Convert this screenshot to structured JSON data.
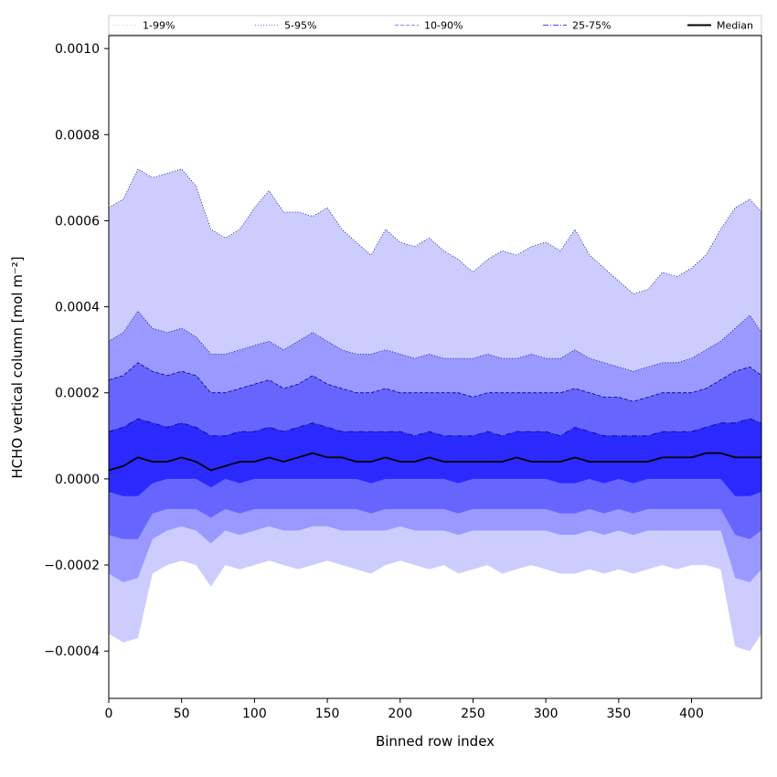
{
  "chart_data": {
    "type": "area",
    "xlabel": "Binned row index",
    "ylabel": "HCHO vertical column [mol m⁻²]",
    "xlim": [
      0,
      448
    ],
    "ylim": [
      -0.00051,
      0.00103
    ],
    "xticks": [
      0,
      50,
      100,
      150,
      200,
      250,
      300,
      350,
      400
    ],
    "xtick_labels": [
      "0",
      "50",
      "100",
      "150",
      "200",
      "250",
      "300",
      "350",
      "400"
    ],
    "yticks": [
      -0.0004,
      -0.0002,
      0.0,
      0.0002,
      0.0004,
      0.0006,
      0.0008,
      0.001
    ],
    "ytick_labels": [
      "−0.0004",
      "−0.0002",
      "0.0000",
      "0.0002",
      "0.0004",
      "0.0006",
      "0.0008",
      "0.0010"
    ],
    "legend_position": "top",
    "grid": false,
    "colors": {
      "band_1_99": "#ccccff",
      "band_5_95": "#9999ff",
      "band_10_90": "#6666ff",
      "band_25_75": "#2a2aff",
      "edge": "#00008b",
      "median": "#000000"
    },
    "legend": [
      {
        "label": "1-99%",
        "style": "dotted",
        "color": "#ccccff"
      },
      {
        "label": "5-95%",
        "style": "dotted",
        "color": "#7777dd"
      },
      {
        "label": "10-90%",
        "style": "dashed",
        "color": "#8888ff"
      },
      {
        "label": "25-75%",
        "style": "dashdot",
        "color": "#4444ff"
      },
      {
        "label": "Median",
        "style": "solid",
        "color": "#000000"
      }
    ],
    "x": [
      0,
      10,
      20,
      30,
      40,
      50,
      60,
      70,
      80,
      90,
      100,
      110,
      120,
      130,
      140,
      150,
      160,
      170,
      180,
      190,
      200,
      210,
      220,
      230,
      240,
      250,
      260,
      270,
      280,
      290,
      300,
      310,
      320,
      330,
      340,
      350,
      360,
      370,
      380,
      390,
      400,
      410,
      420,
      430,
      440,
      448
    ],
    "series": [
      {
        "name": "1-99%",
        "lower": [
          -0.00036,
          -0.00038,
          -0.00037,
          -0.00022,
          -0.0002,
          -0.00019,
          -0.0002,
          -0.00025,
          -0.0002,
          -0.00021,
          -0.0002,
          -0.00019,
          -0.0002,
          -0.00021,
          -0.0002,
          -0.00019,
          -0.0002,
          -0.00021,
          -0.00022,
          -0.0002,
          -0.00019,
          -0.0002,
          -0.00021,
          -0.0002,
          -0.00022,
          -0.00021,
          -0.0002,
          -0.00022,
          -0.00021,
          -0.0002,
          -0.00021,
          -0.00022,
          -0.00022,
          -0.00021,
          -0.00022,
          -0.00021,
          -0.00022,
          -0.00021,
          -0.0002,
          -0.00021,
          -0.0002,
          -0.0002,
          -0.00021,
          -0.00039,
          -0.0004,
          -0.00036
        ],
        "upper": [
          0.00063,
          0.00065,
          0.00072,
          0.0007,
          0.00071,
          0.00072,
          0.00068,
          0.00058,
          0.00056,
          0.00058,
          0.00063,
          0.00067,
          0.00062,
          0.00062,
          0.00061,
          0.00063,
          0.00058,
          0.00055,
          0.00052,
          0.00058,
          0.00055,
          0.00054,
          0.00056,
          0.00053,
          0.00051,
          0.00048,
          0.00051,
          0.00053,
          0.00052,
          0.00054,
          0.00055,
          0.00053,
          0.00058,
          0.00052,
          0.00049,
          0.00046,
          0.00043,
          0.00044,
          0.00048,
          0.00047,
          0.00049,
          0.00052,
          0.00058,
          0.00063,
          0.00065,
          0.00062
        ]
      },
      {
        "name": "5-95%",
        "lower": [
          -0.00022,
          -0.00024,
          -0.00023,
          -0.00014,
          -0.00012,
          -0.00011,
          -0.00012,
          -0.00015,
          -0.00012,
          -0.00013,
          -0.00012,
          -0.00011,
          -0.00012,
          -0.00012,
          -0.00011,
          -0.00011,
          -0.00012,
          -0.00012,
          -0.00012,
          -0.00012,
          -0.00011,
          -0.00012,
          -0.00012,
          -0.00012,
          -0.00013,
          -0.00012,
          -0.00012,
          -0.00012,
          -0.00012,
          -0.00012,
          -0.00012,
          -0.00013,
          -0.00013,
          -0.00012,
          -0.00013,
          -0.00012,
          -0.00013,
          -0.00012,
          -0.00012,
          -0.00012,
          -0.00012,
          -0.00012,
          -0.00012,
          -0.00023,
          -0.00024,
          -0.00021
        ],
        "upper": [
          0.00032,
          0.00034,
          0.00039,
          0.00035,
          0.00034,
          0.00035,
          0.00033,
          0.00029,
          0.00029,
          0.0003,
          0.00031,
          0.00032,
          0.0003,
          0.00032,
          0.00034,
          0.00032,
          0.0003,
          0.00029,
          0.00029,
          0.0003,
          0.00029,
          0.00028,
          0.00029,
          0.00028,
          0.00028,
          0.00028,
          0.00029,
          0.00028,
          0.00028,
          0.00029,
          0.00028,
          0.00028,
          0.0003,
          0.00028,
          0.00027,
          0.00026,
          0.00025,
          0.00026,
          0.00027,
          0.00027,
          0.00028,
          0.0003,
          0.00032,
          0.00035,
          0.00038,
          0.00034
        ]
      },
      {
        "name": "10-90%",
        "lower": [
          -0.00013,
          -0.00014,
          -0.00014,
          -8e-05,
          -7e-05,
          -7e-05,
          -7e-05,
          -9e-05,
          -7e-05,
          -8e-05,
          -7e-05,
          -7e-05,
          -7e-05,
          -7e-05,
          -7e-05,
          -7e-05,
          -7e-05,
          -7e-05,
          -8e-05,
          -7e-05,
          -7e-05,
          -7e-05,
          -7e-05,
          -7e-05,
          -8e-05,
          -7e-05,
          -7e-05,
          -7e-05,
          -7e-05,
          -7e-05,
          -7e-05,
          -8e-05,
          -8e-05,
          -7e-05,
          -8e-05,
          -7e-05,
          -8e-05,
          -7e-05,
          -7e-05,
          -7e-05,
          -7e-05,
          -7e-05,
          -7e-05,
          -0.00013,
          -0.00014,
          -0.00012
        ],
        "upper": [
          0.00023,
          0.00024,
          0.00027,
          0.00025,
          0.00024,
          0.00025,
          0.00024,
          0.0002,
          0.0002,
          0.00021,
          0.00022,
          0.00023,
          0.00021,
          0.00022,
          0.00024,
          0.00022,
          0.00021,
          0.0002,
          0.0002,
          0.00021,
          0.0002,
          0.0002,
          0.0002,
          0.0002,
          0.0002,
          0.00019,
          0.0002,
          0.0002,
          0.0002,
          0.0002,
          0.0002,
          0.0002,
          0.00021,
          0.0002,
          0.00019,
          0.00019,
          0.00018,
          0.00019,
          0.0002,
          0.0002,
          0.0002,
          0.00021,
          0.00023,
          0.00025,
          0.00026,
          0.00024
        ]
      },
      {
        "name": "25-75%",
        "lower": [
          -3e-05,
          -4e-05,
          -4e-05,
          -1e-05,
          0.0,
          0.0,
          0.0,
          -2e-05,
          0.0,
          -1e-05,
          0.0,
          0.0,
          0.0,
          0.0,
          0.0,
          0.0,
          0.0,
          0.0,
          -1e-05,
          0.0,
          0.0,
          0.0,
          0.0,
          0.0,
          -1e-05,
          0.0,
          0.0,
          0.0,
          0.0,
          0.0,
          0.0,
          -1e-05,
          -1e-05,
          0.0,
          -1e-05,
          0.0,
          -1e-05,
          0.0,
          0.0,
          0.0,
          0.0,
          0.0,
          0.0,
          -4e-05,
          -4e-05,
          -3e-05
        ],
        "upper": [
          0.00011,
          0.00012,
          0.00014,
          0.00013,
          0.00012,
          0.00013,
          0.00012,
          0.0001,
          0.0001,
          0.00011,
          0.00011,
          0.00012,
          0.00011,
          0.00012,
          0.00013,
          0.00012,
          0.00011,
          0.00011,
          0.00011,
          0.00011,
          0.00011,
          0.0001,
          0.00011,
          0.0001,
          0.0001,
          0.0001,
          0.00011,
          0.0001,
          0.00011,
          0.00011,
          0.00011,
          0.0001,
          0.00012,
          0.00011,
          0.0001,
          0.0001,
          0.0001,
          0.0001,
          0.00011,
          0.00011,
          0.00011,
          0.00012,
          0.00013,
          0.00013,
          0.00014,
          0.00013
        ]
      },
      {
        "name": "Median",
        "values": [
          2e-05,
          3e-05,
          5e-05,
          4e-05,
          4e-05,
          5e-05,
          4e-05,
          2e-05,
          3e-05,
          4e-05,
          4e-05,
          5e-05,
          4e-05,
          5e-05,
          6e-05,
          5e-05,
          5e-05,
          4e-05,
          4e-05,
          5e-05,
          4e-05,
          4e-05,
          5e-05,
          4e-05,
          4e-05,
          4e-05,
          4e-05,
          4e-05,
          5e-05,
          4e-05,
          4e-05,
          4e-05,
          5e-05,
          4e-05,
          4e-05,
          4e-05,
          4e-05,
          4e-05,
          5e-05,
          5e-05,
          5e-05,
          6e-05,
          6e-05,
          5e-05,
          5e-05,
          5e-05
        ]
      }
    ]
  }
}
